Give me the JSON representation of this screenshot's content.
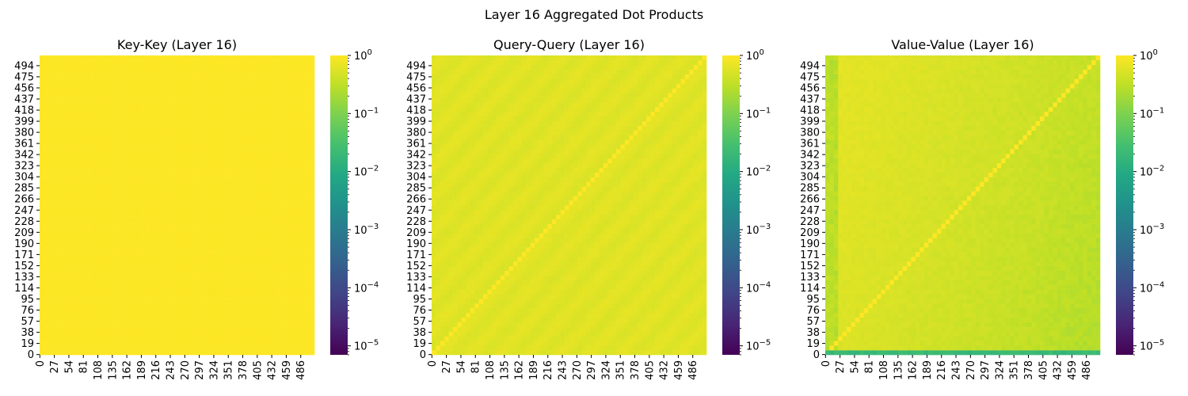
{
  "figure_title": "Layer 16 Aggregated Dot Products",
  "chart_data": [
    {
      "type": "heatmap",
      "title": "Key-Key (Layer 16)",
      "pattern": "uniform",
      "value_range": [
        0.9,
        1.0
      ],
      "x_tick_labels": [
        "0",
        "27",
        "54",
        "81",
        "108",
        "135",
        "162",
        "189",
        "216",
        "243",
        "270",
        "297",
        "324",
        "351",
        "378",
        "405",
        "432",
        "459",
        "486"
      ],
      "y_tick_labels": [
        "0",
        "19",
        "38",
        "57",
        "76",
        "95",
        "114",
        "133",
        "152",
        "171",
        "190",
        "209",
        "228",
        "247",
        "266",
        "285",
        "304",
        "323",
        "342",
        "361",
        "380",
        "399",
        "418",
        "437",
        "456",
        "475",
        "494"
      ],
      "n_tokens": 512,
      "colorbar": {
        "scale": "log",
        "colormap": "viridis",
        "min": 7e-06,
        "max": 1.0,
        "tick_labels": [
          "10^0",
          "10^-1",
          "10^-2",
          "10^-3",
          "10^-4",
          "10^-5"
        ],
        "tick_values": [
          1,
          0.1,
          0.01,
          0.001,
          0.0001,
          1e-05
        ]
      }
    },
    {
      "type": "heatmap",
      "title": "Query-Query (Layer 16)",
      "pattern": "diagonal-band",
      "value_range": [
        0.3,
        1.0
      ],
      "x_tick_labels": [
        "0",
        "27",
        "54",
        "81",
        "108",
        "135",
        "162",
        "189",
        "216",
        "243",
        "270",
        "297",
        "324",
        "351",
        "378",
        "405",
        "432",
        "459",
        "486"
      ],
      "y_tick_labels": [
        "0",
        "19",
        "38",
        "57",
        "76",
        "95",
        "114",
        "133",
        "152",
        "171",
        "190",
        "209",
        "228",
        "247",
        "266",
        "285",
        "304",
        "323",
        "342",
        "361",
        "380",
        "399",
        "418",
        "437",
        "456",
        "475",
        "494"
      ],
      "n_tokens": 512,
      "colorbar": {
        "scale": "log",
        "colormap": "viridis",
        "min": 7e-06,
        "max": 1.0,
        "tick_labels": [
          "10^0",
          "10^-1",
          "10^-2",
          "10^-3",
          "10^-4",
          "10^-5"
        ],
        "tick_values": [
          1,
          0.1,
          0.01,
          0.001,
          0.0001,
          1e-05
        ]
      }
    },
    {
      "type": "heatmap",
      "title": "Value-Value (Layer 16)",
      "pattern": "low-first-token",
      "value_range": [
        0.01,
        1.0
      ],
      "x_tick_labels": [
        "0",
        "27",
        "54",
        "81",
        "108",
        "135",
        "162",
        "189",
        "216",
        "243",
        "270",
        "297",
        "324",
        "351",
        "378",
        "405",
        "432",
        "459",
        "486"
      ],
      "y_tick_labels": [
        "0",
        "19",
        "38",
        "57",
        "76",
        "95",
        "114",
        "133",
        "152",
        "171",
        "190",
        "209",
        "228",
        "247",
        "266",
        "285",
        "304",
        "323",
        "342",
        "361",
        "380",
        "399",
        "418",
        "437",
        "456",
        "475",
        "494"
      ],
      "n_tokens": 512,
      "colorbar": {
        "scale": "log",
        "colormap": "viridis",
        "min": 7e-06,
        "max": 1.0,
        "tick_labels": [
          "10^0",
          "10^-1",
          "10^-2",
          "10^-3",
          "10^-4",
          "10^-5"
        ],
        "tick_values": [
          1,
          0.1,
          0.01,
          0.001,
          0.0001,
          1e-05
        ]
      }
    }
  ]
}
